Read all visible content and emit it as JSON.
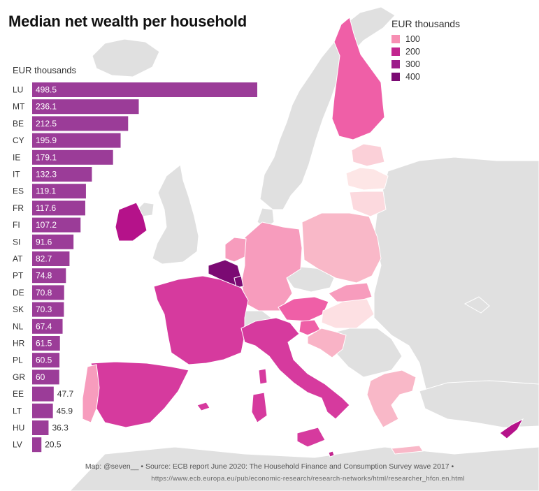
{
  "title": "Median net wealth per household",
  "unit_label": "EUR thousands",
  "legend": {
    "title": "EUR thousands",
    "items": [
      {
        "label": "100",
        "color": "#f78fb3"
      },
      {
        "label": "200",
        "color": "#c2268f"
      },
      {
        "label": "300",
        "color": "#9c1a8a"
      },
      {
        "label": "400",
        "color": "#7b0a73"
      }
    ]
  },
  "chart_data": {
    "type": "bar",
    "orientation": "horizontal",
    "title": "Median net wealth per household",
    "xlabel": "EUR thousands",
    "ylabel": "",
    "xlim": [
      0,
      498.5
    ],
    "bar_color": "#9b3c98",
    "categories": [
      "LU",
      "MT",
      "BE",
      "CY",
      "IE",
      "IT",
      "ES",
      "FR",
      "FI",
      "SI",
      "AT",
      "PT",
      "DE",
      "SK",
      "NL",
      "HR",
      "PL",
      "GR",
      "EE",
      "LT",
      "HU",
      "LV"
    ],
    "values": [
      498.5,
      236.1,
      212.5,
      195.9,
      179.1,
      132.3,
      119.1,
      117.6,
      107.2,
      91.6,
      82.7,
      74.8,
      70.8,
      70.3,
      67.4,
      61.5,
      60.5,
      60,
      47.7,
      45.9,
      36.3,
      20.5
    ],
    "value_labels": [
      "498.5",
      "236.1",
      "212.5",
      "195.9",
      "179.1",
      "132.3",
      "119.1",
      "117.6",
      "107.2",
      "91.6",
      "82.7",
      "74.8",
      "70.8",
      "70.3",
      "67.4",
      "61.5",
      "60.5",
      "60",
      "47.7",
      "45.9",
      "36.3",
      "20.5"
    ],
    "map_colors": {
      "LU": "#7b0a73",
      "BE": "#7b0a73",
      "MT": "#c2268f",
      "CY": "#b5128a",
      "IE": "#b5128a",
      "IT": "#d63a9e",
      "ES": "#d63a9e",
      "FR": "#d63a9e",
      "FI": "#ef5fa7",
      "SI": "#ef5fa7",
      "AT": "#ef5fa7",
      "PT": "#f79cbd",
      "DE": "#f79cbd",
      "SK": "#f79cbd",
      "NL": "#f79cbd",
      "HR": "#f9b3c6",
      "PL": "#f9b8c8",
      "GR": "#f9b8c8",
      "EE": "#fbd0d8",
      "LT": "#fcd9de",
      "HU": "#fde0e3",
      "LV": "#fde6e6"
    }
  },
  "footer": {
    "line1": "Map: @seven__ • Source: ECB report June 2020: The Household Finance and Consumption Survey wave 2017 •",
    "line2": "https://www.ecb.europa.eu/pub/economic-research/research-networks/html/researcher_hfcn.en.html"
  }
}
